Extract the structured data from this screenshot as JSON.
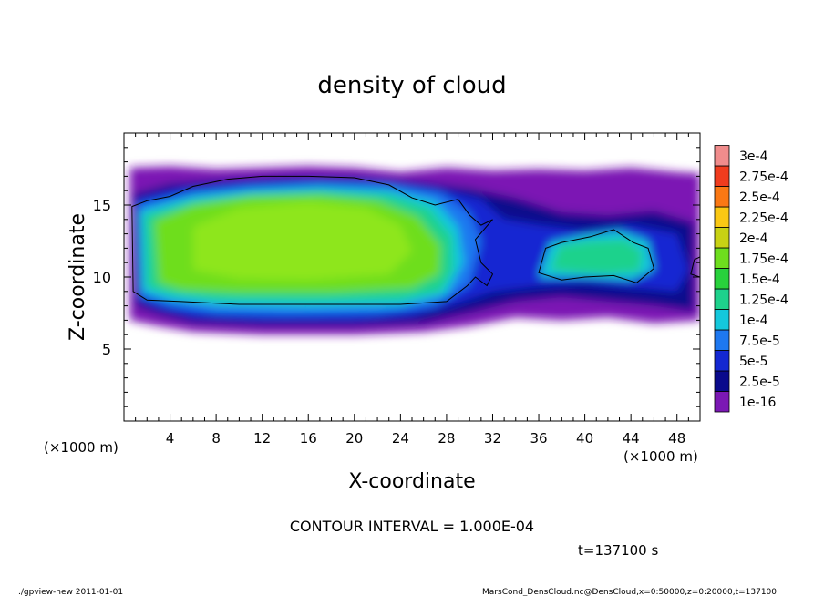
{
  "chart_data": {
    "type": "heatmap",
    "title": "density of cloud",
    "xlabel": "X-coordinate",
    "ylabel": "Z-coordinate",
    "x_unit": "(×1000 m)",
    "y_unit": "(×1000 m)",
    "xlim": [
      0,
      50
    ],
    "ylim": [
      0,
      20
    ],
    "x_ticks": [
      "4",
      "8",
      "12",
      "16",
      "20",
      "24",
      "28",
      "32",
      "36",
      "40",
      "44",
      "48"
    ],
    "y_ticks": [
      "5",
      "10",
      "15"
    ],
    "colorbar": {
      "labels": [
        "1e-16",
        "2.5e-5",
        "5e-5",
        "7.5e-5",
        "1e-4",
        "1.25e-4",
        "1.5e-4",
        "1.75e-4",
        "2e-4",
        "2.25e-4",
        "2.5e-4",
        "2.75e-4",
        "3e-4"
      ],
      "colors": [
        "#7b18b4",
        "#0a0a8c",
        "#1428d2",
        "#1e78f0",
        "#14c8dc",
        "#1ed28c",
        "#28d23c",
        "#6ede1e",
        "#c8d214",
        "#fac814",
        "#fa7814",
        "#f03c1e",
        "#f08c8c"
      ]
    },
    "contour_interval_text": "CONTOUR INTERVAL = 1.000E-04",
    "time_text": "t=137100 s",
    "regions": [
      {
        "level": "1e-16",
        "x_range": [
          0.5,
          50
        ],
        "z_range": [
          6.5,
          17.7
        ]
      },
      {
        "level": "1.25e-4",
        "x_range": [
          0.5,
          29.5
        ],
        "z_range": [
          8.0,
          16.5
        ]
      },
      {
        "level": "1e-4",
        "x_range": [
          36.5,
          44
        ],
        "z_range": [
          9.5,
          13.0
        ]
      }
    ]
  },
  "footer": {
    "left": "./gpview-new  2011-01-01",
    "right": "MarsCond_DensCloud.nc@DensCloud,x=0:50000,z=0:20000,t=137100"
  }
}
